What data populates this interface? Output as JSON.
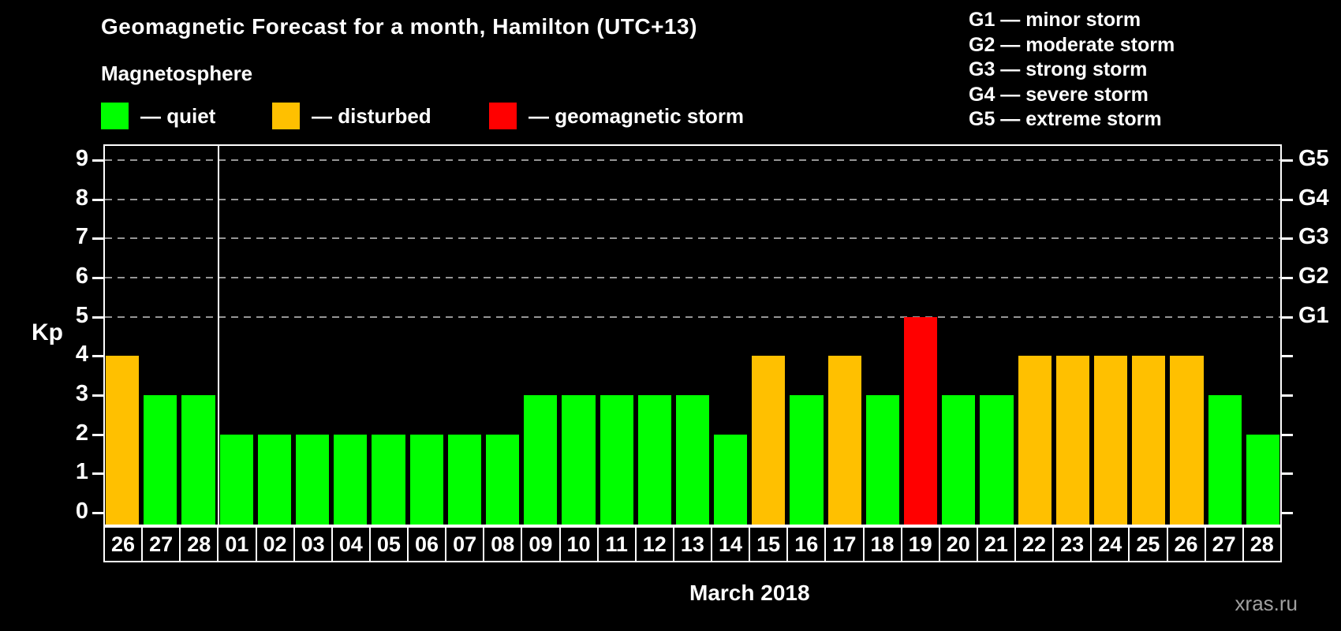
{
  "title": "Geomagnetic Forecast for a month, Hamilton (UTC+13)",
  "subtitle": "Magnetosphere",
  "watermark": "xras.ru",
  "legend": {
    "items": [
      {
        "name": "quiet",
        "label": "— quiet",
        "color": "#00ff00"
      },
      {
        "name": "disturbed",
        "label": "— disturbed",
        "color": "#ffc000"
      },
      {
        "name": "storm",
        "label": "— geomagnetic storm",
        "color": "#ff0000"
      }
    ]
  },
  "g_scale": [
    "G1 — minor storm",
    "G2 — moderate storm",
    "G3 — strong storm",
    "G4 — severe storm",
    "G5 — extreme storm"
  ],
  "chart_data": {
    "type": "bar",
    "title": "Geomagnetic Forecast for a month, Hamilton (UTC+13)",
    "xlabel": "March 2018",
    "ylabel": "Kp",
    "ylim": [
      0,
      9
    ],
    "yticks": [
      0,
      1,
      2,
      3,
      4,
      5,
      6,
      7,
      8,
      9
    ],
    "gridlines_at": [
      5,
      6,
      7,
      8,
      9
    ],
    "grid_style": "dashed horizontal at storm levels",
    "legend_position": "top-left",
    "right_axis": [
      {
        "kp": 5,
        "label": "G1"
      },
      {
        "kp": 6,
        "label": "G2"
      },
      {
        "kp": 7,
        "label": "G3"
      },
      {
        "kp": 8,
        "label": "G4"
      },
      {
        "kp": 9,
        "label": "G5"
      }
    ],
    "month_separator_after": 3,
    "prev_month_days": 3,
    "categories": [
      "26",
      "27",
      "28",
      "01",
      "02",
      "03",
      "04",
      "05",
      "06",
      "07",
      "08",
      "09",
      "10",
      "11",
      "12",
      "13",
      "14",
      "15",
      "16",
      "17",
      "18",
      "19",
      "20",
      "21",
      "22",
      "23",
      "24",
      "25",
      "26",
      "27",
      "28"
    ],
    "values": [
      4,
      3,
      3,
      2,
      2,
      2,
      2,
      2,
      2,
      2,
      2,
      3,
      3,
      3,
      3,
      3,
      2,
      4,
      3,
      4,
      3,
      5,
      3,
      3,
      4,
      4,
      4,
      4,
      4,
      3,
      2
    ],
    "statuses": [
      "disturbed",
      "quiet",
      "quiet",
      "quiet",
      "quiet",
      "quiet",
      "quiet",
      "quiet",
      "quiet",
      "quiet",
      "quiet",
      "quiet",
      "quiet",
      "quiet",
      "quiet",
      "quiet",
      "quiet",
      "disturbed",
      "quiet",
      "disturbed",
      "quiet",
      "storm",
      "quiet",
      "quiet",
      "disturbed",
      "disturbed",
      "disturbed",
      "disturbed",
      "disturbed",
      "quiet",
      "quiet"
    ],
    "status_colors": {
      "quiet": "#00ff00",
      "disturbed": "#ffc000",
      "storm": "#ff0000"
    }
  }
}
